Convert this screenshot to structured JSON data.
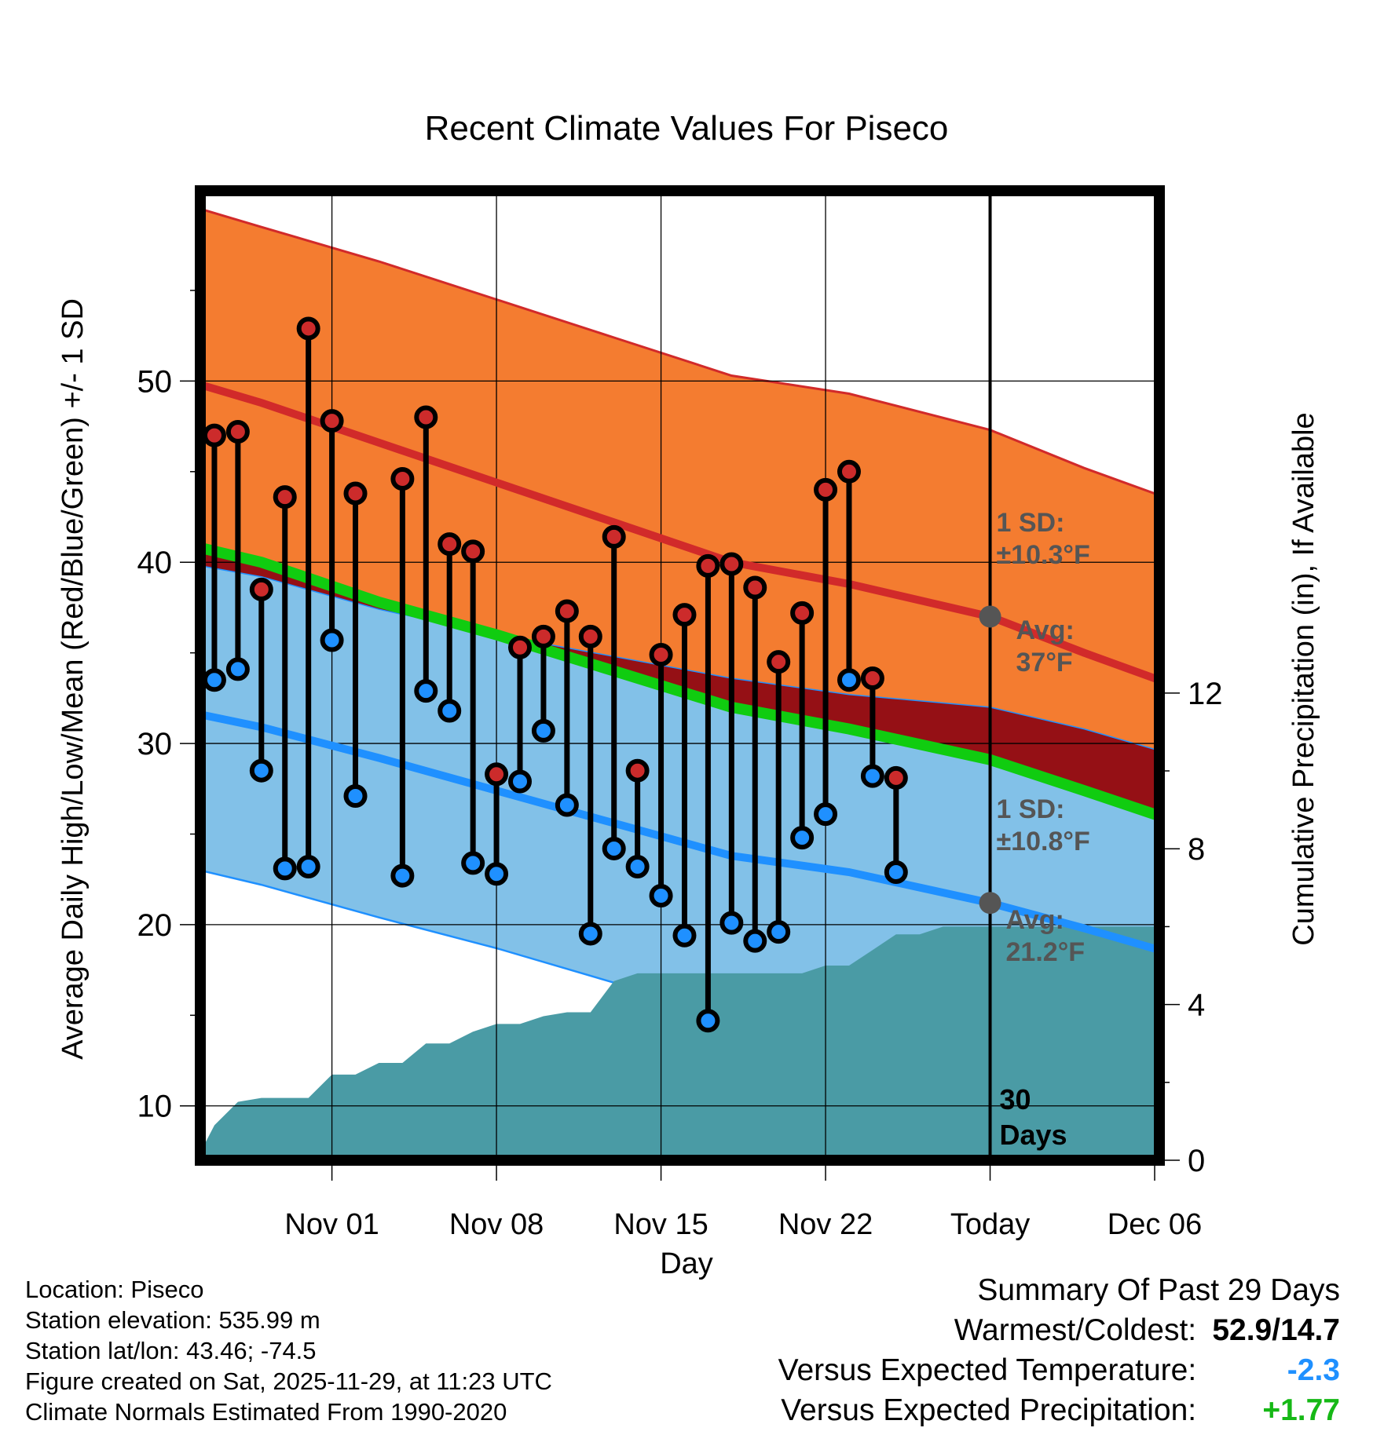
{
  "colors": {
    "high_band": "#F47C30",
    "high_line": "#D12A2A",
    "low_band": "#82C1E8",
    "low_line": "#1F90FF",
    "mean_line": "#10CC10",
    "excess": "#951015",
    "precip": "#4A9BA5",
    "obs_high": "#CC2B2B",
    "obs_low": "#1F90FF",
    "marker_gray": "#555555",
    "anom_temp": "#1F90FF",
    "anom_precip": "#16B816"
  },
  "chart_data": {
    "type": "line",
    "title": "Recent Climate Values For Piseco",
    "xlabel": "Day",
    "ylabel": "Average Daily High/Low/Mean (Red/Blue/Green) +/- 1 SD",
    "y2label": "Cumulative Precipitation (in), If Available",
    "x_unit": "days since Oct 29",
    "xlim": [
      -2.6,
      38.2
    ],
    "ylim": [
      7,
      60.5
    ],
    "y2lim": [
      0,
      24.9
    ],
    "yticks": [
      10,
      20,
      30,
      40,
      50
    ],
    "y2ticks": [
      0,
      4,
      8,
      12
    ],
    "xticks": [
      {
        "x": 3,
        "label": "Nov 01"
      },
      {
        "x": 10,
        "label": "Nov 08"
      },
      {
        "x": 17,
        "label": "Nov 15"
      },
      {
        "x": 24,
        "label": "Nov 22"
      },
      {
        "x": 31,
        "label": "Today"
      },
      {
        "x": 38,
        "label": "Dec 06"
      }
    ],
    "grid": true,
    "today_x": 31,
    "normals_x": [
      -2.6,
      0,
      5,
      10,
      15,
      20,
      25,
      31,
      35,
      38.2
    ],
    "normal_high": [
      49.8,
      48.8,
      46.6,
      44.4,
      42.2,
      40.0,
      38.8,
      37.0,
      35.0,
      33.5
    ],
    "normal_high_upper": [
      59.5,
      58.5,
      56.6,
      54.5,
      52.4,
      50.3,
      49.3,
      47.3,
      45.2,
      43.7
    ],
    "normal_mean": [
      40.8,
      40.0,
      37.8,
      36.0,
      34.0,
      32.0,
      30.8,
      29.1,
      27.4,
      26.0
    ],
    "normal_low_upper": [
      39.8,
      39.2,
      37.4,
      36.0,
      34.8,
      33.6,
      32.7,
      32.0,
      30.8,
      29.6
    ],
    "normal_low": [
      31.6,
      30.9,
      29.2,
      27.4,
      25.6,
      23.8,
      22.9,
      21.2,
      19.8,
      18.6
    ],
    "normal_low_lower": [
      23.0,
      22.2,
      20.4,
      18.7,
      16.8,
      15.0,
      14.2,
      12.5,
      11.3,
      10.4
    ],
    "sd_high_label": "1 SD:",
    "sd_high_value": "±10.3°F",
    "avg_high_label": "Avg:",
    "avg_high_value": "37°F",
    "avg_high": 37,
    "sd_low_label": "1 SD:",
    "sd_low_value": "±10.8°F",
    "avg_low_label": "Avg:",
    "avg_low_value": "21.2°F",
    "avg_low": 21.2,
    "window_label_1": "30",
    "window_label_2": "Days",
    "days": [
      -2,
      -1,
      0,
      1,
      2,
      3,
      4,
      6,
      7,
      8,
      9,
      10,
      11,
      12,
      13,
      14,
      15,
      16,
      17,
      18,
      19,
      20,
      21,
      22,
      23,
      24,
      25,
      26,
      27,
      28
    ],
    "highs": [
      47,
      47.2,
      38.5,
      43.6,
      52.9,
      47.8,
      43.8,
      44.6,
      48.0,
      41.0,
      40.6,
      28.3,
      35.3,
      35.9,
      37.3,
      35.9,
      41.4,
      28.5,
      34.9,
      37.1,
      39.8,
      39.9,
      38.6,
      34.5,
      37.2,
      44.0,
      45.0,
      33.6,
      28.1,
      null
    ],
    "lows": [
      33.5,
      34.1,
      28.5,
      23.1,
      23.2,
      35.7,
      27.1,
      22.7,
      32.9,
      31.8,
      23.4,
      22.8,
      27.9,
      30.7,
      26.6,
      19.5,
      24.2,
      23.2,
      21.6,
      19.4,
      14.7,
      20.1,
      19.1,
      19.6,
      24.8,
      26.1,
      33.5,
      28.2,
      22.9,
      null
    ],
    "precip_cumulative": {
      "x": [
        -2.6,
        -2,
        -1,
        0,
        1,
        2,
        3,
        4,
        5,
        6,
        7,
        8,
        9,
        10,
        11,
        12,
        13,
        14,
        15,
        16,
        17,
        18,
        19,
        20,
        21,
        22,
        23,
        24,
        25,
        26,
        27,
        28,
        29,
        30,
        31,
        38.2
      ],
      "y": [
        0.2,
        0.9,
        1.5,
        1.6,
        1.6,
        1.6,
        2.2,
        2.2,
        2.5,
        2.5,
        3.0,
        3.0,
        3.3,
        3.5,
        3.5,
        3.7,
        3.8,
        3.8,
        4.6,
        4.8,
        4.8,
        4.8,
        4.8,
        4.8,
        4.8,
        4.8,
        4.8,
        5.0,
        5.0,
        5.4,
        5.8,
        5.8,
        6.0,
        6.0,
        6.0,
        6.0
      ]
    }
  },
  "footer": {
    "location": "Location: Piseco",
    "elevation": "Station elevation: 535.99 m",
    "latlon": "Station lat/lon: 43.46; -74.5",
    "created": "Figure created on Sat, 2025-11-29, at 11:23 UTC",
    "normals": "Climate Normals Estimated From 1990-2020"
  },
  "summary": {
    "heading": "Summary Of Past 29 Days",
    "warmest_label": "Warmest/Coldest:",
    "warmest_value": "52.9/14.7",
    "temp_label": "Versus Expected Temperature:",
    "temp_value": "-2.3",
    "precip_label": "Versus Expected Precipitation:",
    "precip_value": "+1.77"
  }
}
